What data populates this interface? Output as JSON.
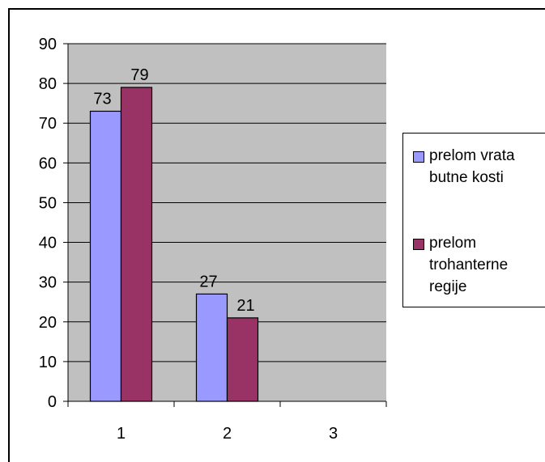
{
  "chart_data": {
    "type": "bar",
    "categories": [
      "1",
      "2",
      "3"
    ],
    "series": [
      {
        "name": "prelom vrata butne kosti",
        "values": [
          73,
          27,
          null
        ],
        "color": "#9999ff"
      },
      {
        "name": "prelom trohanterne regije",
        "values": [
          79,
          21,
          null
        ],
        "color": "#993366"
      }
    ],
    "ylim": [
      0,
      90
    ],
    "yticks": [
      "0",
      "10",
      "20",
      "30",
      "40",
      "50",
      "60",
      "70",
      "80",
      "90"
    ],
    "grid": true,
    "plot_background": "#c0c0c0",
    "legend_position": "right"
  }
}
